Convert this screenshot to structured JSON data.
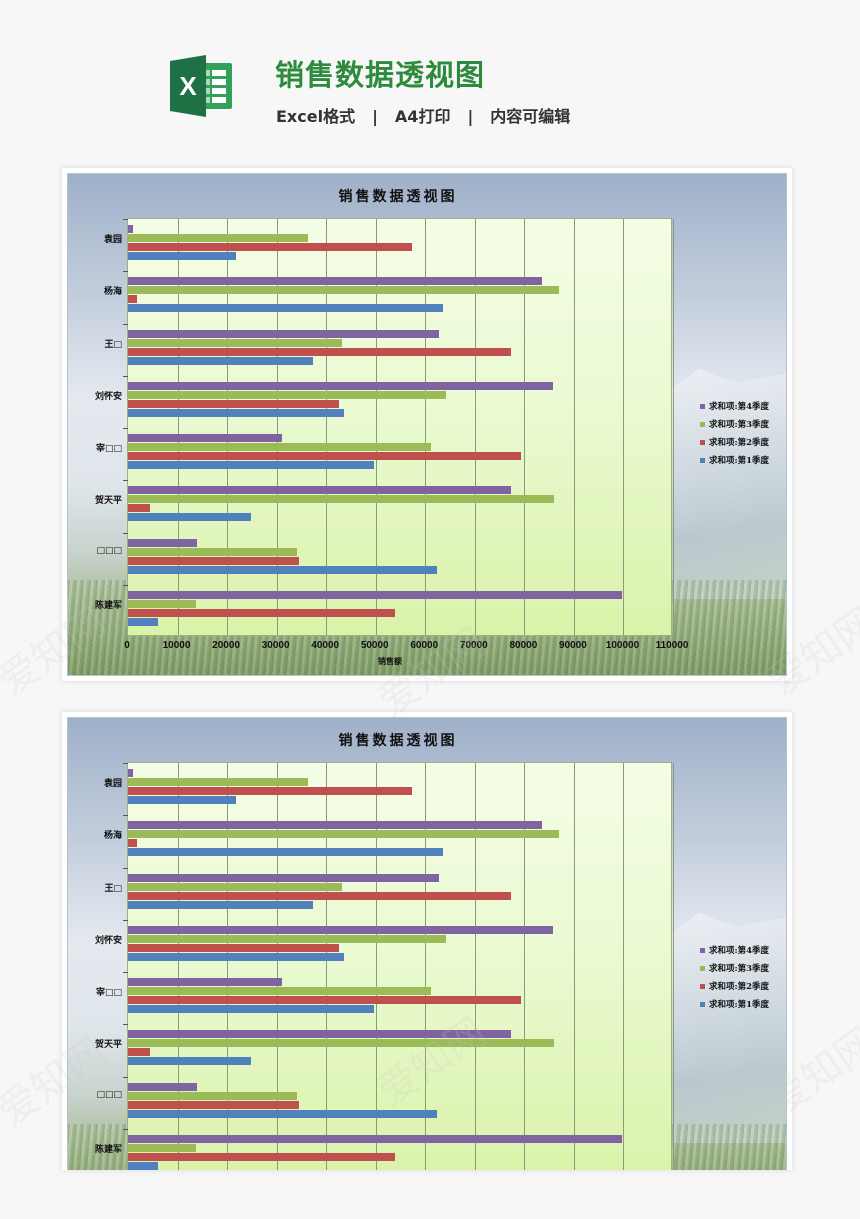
{
  "header": {
    "title": "销售数据透视图",
    "tags": [
      "Excel格式",
      "A4打印",
      "内容可编辑"
    ],
    "separator": "|",
    "logo_icon": "excel-icon",
    "colors": {
      "title": "#2e8b3e",
      "logo_dark": "#1e7145",
      "logo_light": "#33a15a"
    }
  },
  "chart_data": {
    "type": "bar",
    "orientation": "horizontal",
    "title": "销售数据透视图",
    "xlabel": "销售额",
    "ylabel": "",
    "xlim": [
      0,
      110000
    ],
    "x_ticks": [
      "0",
      "10000",
      "20000",
      "30000",
      "40000",
      "50000",
      "60000",
      "70000",
      "80000",
      "90000",
      "100000",
      "110000"
    ],
    "grid": true,
    "legend_position": "right",
    "categories": [
      "袁园",
      "杨海",
      "王□",
      "刘怀安",
      "宰□□",
      "贺天平",
      "□□□",
      "陈建军"
    ],
    "series": [
      {
        "name": "求和项:第4季度",
        "color": "#8064a2",
        "values": [
          1000,
          83600,
          62700,
          85800,
          31100,
          77400,
          14000,
          99700
        ]
      },
      {
        "name": "求和项:第3季度",
        "color": "#9bbb59",
        "values": [
          36400,
          87000,
          43100,
          64200,
          61100,
          86000,
          34200,
          13800
        ]
      },
      {
        "name": "求和项:第2季度",
        "color": "#c0504d",
        "values": [
          57300,
          1800,
          77300,
          42600,
          79300,
          4500,
          34500,
          53800
        ]
      },
      {
        "name": "求和项:第1季度",
        "color": "#4f81bd",
        "values": [
          21800,
          63500,
          37300,
          43600,
          49600,
          24900,
          62400,
          6100
        ]
      }
    ]
  },
  "watermark": "爱知网"
}
